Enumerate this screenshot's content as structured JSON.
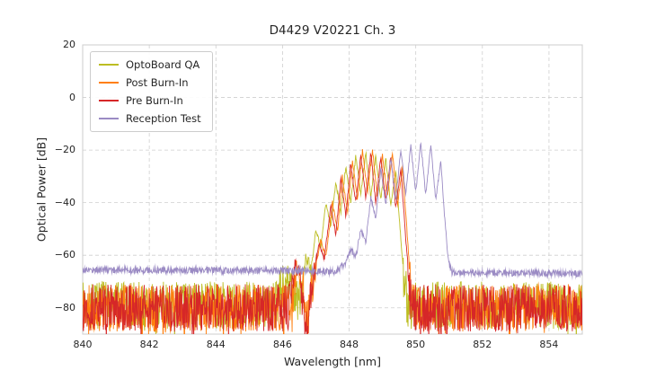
{
  "chart_data": {
    "type": "line",
    "title": "D4429 V20221 Ch. 3",
    "xlabel": "Wavelength [nm]",
    "ylabel": "Optical Power [dB]",
    "xlim": [
      840,
      855
    ],
    "ylim": [
      -90,
      20
    ],
    "xtick_values": [
      840,
      842,
      844,
      846,
      848,
      850,
      852,
      854
    ],
    "xtick_labels": [
      "840",
      "842",
      "844",
      "846",
      "848",
      "850",
      "852",
      "854"
    ],
    "ytick_values": [
      20,
      0,
      -20,
      -40,
      -60,
      -80
    ],
    "ytick_labels": [
      "20",
      "0",
      "−20",
      "−40",
      "−60",
      "−80"
    ],
    "grid": true,
    "grid_color": "#cfcfcf",
    "border_color": "#cccccc",
    "background": "#ffffff",
    "legend_position": "upper left",
    "sample_step_nm": 0.012,
    "series": [
      {
        "name": "OptoBoard QA",
        "color": "#bcbd22",
        "seed": 7,
        "noise_floor": -79,
        "noise_amp": 9,
        "envelope": [
          [
            840,
            -79
          ],
          [
            845.8,
            -79
          ],
          [
            846.1,
            -67
          ],
          [
            846.3,
            -74
          ],
          [
            846.5,
            -79
          ],
          [
            846.7,
            -60
          ],
          [
            846.85,
            -67
          ],
          [
            847.0,
            -50
          ],
          [
            847.15,
            -57
          ],
          [
            847.3,
            -40
          ],
          [
            847.45,
            -49
          ],
          [
            847.6,
            -32
          ],
          [
            847.75,
            -44
          ],
          [
            847.9,
            -26
          ],
          [
            848.05,
            -40
          ],
          [
            848.2,
            -22
          ],
          [
            848.35,
            -37
          ],
          [
            848.5,
            -21
          ],
          [
            848.65,
            -38
          ],
          [
            848.8,
            -22
          ],
          [
            848.95,
            -39
          ],
          [
            849.1,
            -23
          ],
          [
            849.25,
            -41
          ],
          [
            849.4,
            -28
          ],
          [
            849.52,
            -48
          ],
          [
            849.62,
            -65
          ],
          [
            849.75,
            -79
          ],
          [
            855,
            -79
          ]
        ]
      },
      {
        "name": "Post Burn-In",
        "color": "#ff7f0e",
        "seed": 11,
        "noise_floor": -80,
        "noise_amp": 9,
        "envelope": [
          [
            840,
            -80
          ],
          [
            846.25,
            -80
          ],
          [
            846.45,
            -64
          ],
          [
            846.6,
            -72
          ],
          [
            846.75,
            -83
          ],
          [
            846.95,
            -68
          ],
          [
            847.15,
            -54
          ],
          [
            847.3,
            -61
          ],
          [
            847.5,
            -40
          ],
          [
            847.65,
            -51
          ],
          [
            847.8,
            -30
          ],
          [
            847.95,
            -44
          ],
          [
            848.1,
            -24
          ],
          [
            848.25,
            -39
          ],
          [
            848.4,
            -20
          ],
          [
            848.55,
            -36
          ],
          [
            848.7,
            -20
          ],
          [
            848.85,
            -38
          ],
          [
            849.0,
            -22
          ],
          [
            849.15,
            -38
          ],
          [
            849.3,
            -21
          ],
          [
            849.45,
            -41
          ],
          [
            849.6,
            -27
          ],
          [
            849.72,
            -48
          ],
          [
            849.82,
            -66
          ],
          [
            849.92,
            -80
          ],
          [
            855,
            -80
          ]
        ]
      },
      {
        "name": "Pre Burn-In",
        "color": "#d62728",
        "seed": 13,
        "noise_floor": -80,
        "noise_amp": 9,
        "envelope": [
          [
            840,
            -80
          ],
          [
            846.2,
            -80
          ],
          [
            846.4,
            -63
          ],
          [
            846.55,
            -70
          ],
          [
            846.7,
            -87
          ],
          [
            846.9,
            -70
          ],
          [
            847.1,
            -55
          ],
          [
            847.25,
            -62
          ],
          [
            847.45,
            -41
          ],
          [
            847.6,
            -52
          ],
          [
            847.75,
            -31
          ],
          [
            847.9,
            -45
          ],
          [
            848.05,
            -25
          ],
          [
            848.2,
            -40
          ],
          [
            848.35,
            -22
          ],
          [
            848.5,
            -38
          ],
          [
            848.65,
            -21
          ],
          [
            848.8,
            -40
          ],
          [
            848.95,
            -23
          ],
          [
            849.1,
            -39
          ],
          [
            849.25,
            -22
          ],
          [
            849.4,
            -42
          ],
          [
            849.55,
            -27
          ],
          [
            849.68,
            -50
          ],
          [
            849.78,
            -68
          ],
          [
            849.88,
            -80
          ],
          [
            855,
            -80
          ]
        ]
      },
      {
        "name": "Reception Test",
        "color": "#9b8bc4",
        "seed": 17,
        "noise_floor": -66,
        "noise_amp": 1.3,
        "envelope": [
          [
            840,
            -65.5
          ],
          [
            846.5,
            -66
          ],
          [
            847.6,
            -66.2
          ],
          [
            847.9,
            -63
          ],
          [
            848.05,
            -58
          ],
          [
            848.2,
            -61
          ],
          [
            848.35,
            -50
          ],
          [
            848.5,
            -55
          ],
          [
            848.65,
            -38
          ],
          [
            848.8,
            -46
          ],
          [
            848.95,
            -27
          ],
          [
            849.1,
            -41
          ],
          [
            849.25,
            -23
          ],
          [
            849.4,
            -39
          ],
          [
            849.55,
            -19.5
          ],
          [
            849.7,
            -37
          ],
          [
            849.85,
            -18
          ],
          [
            850.0,
            -36
          ],
          [
            850.15,
            -17
          ],
          [
            850.3,
            -37
          ],
          [
            850.45,
            -18
          ],
          [
            850.6,
            -39
          ],
          [
            850.75,
            -24
          ],
          [
            850.88,
            -48
          ],
          [
            850.98,
            -62
          ],
          [
            851.08,
            -66.5
          ],
          [
            855,
            -67
          ]
        ]
      }
    ]
  }
}
